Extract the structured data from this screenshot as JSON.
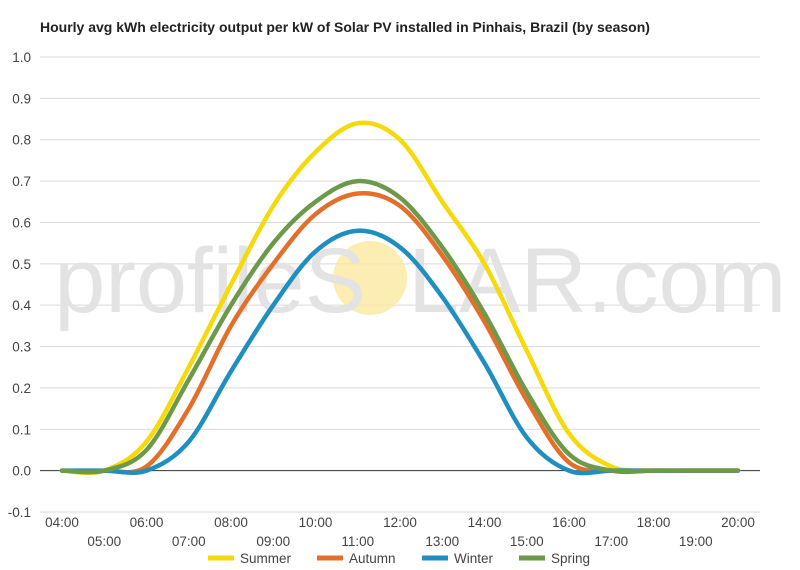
{
  "chart_data": {
    "type": "line",
    "title": "Hourly avg kWh electricity output per kW of Solar PV installed in Pinhais, Brazil (by season)",
    "xlabel": "",
    "ylabel": "",
    "x": [
      "04:00",
      "05:00",
      "06:00",
      "07:00",
      "08:00",
      "09:00",
      "10:00",
      "11:00",
      "12:00",
      "13:00",
      "14:00",
      "15:00",
      "16:00",
      "17:00",
      "18:00",
      "19:00",
      "20:00"
    ],
    "ylim": [
      -0.1,
      1.0
    ],
    "yticks": [
      "-0.1",
      "0.0",
      "0.1",
      "0.2",
      "0.3",
      "0.4",
      "0.5",
      "0.6",
      "0.7",
      "0.8",
      "0.9",
      "1.0"
    ],
    "grid": true,
    "legend_position": "bottom",
    "series": [
      {
        "name": "Summer",
        "color": "#f5d90a",
        "values": [
          0.0,
          0.0,
          0.07,
          0.25,
          0.45,
          0.64,
          0.77,
          0.84,
          0.8,
          0.65,
          0.5,
          0.29,
          0.09,
          0.01,
          0.0,
          0.0,
          0.0
        ]
      },
      {
        "name": "Autumn",
        "color": "#e3702a",
        "values": [
          0.0,
          0.0,
          0.01,
          0.15,
          0.35,
          0.5,
          0.62,
          0.67,
          0.64,
          0.52,
          0.36,
          0.17,
          0.02,
          0.0,
          0.0,
          0.0,
          0.0
        ]
      },
      {
        "name": "Winter",
        "color": "#1f8fc0",
        "values": [
          0.0,
          0.0,
          0.0,
          0.07,
          0.24,
          0.4,
          0.53,
          0.58,
          0.54,
          0.42,
          0.26,
          0.08,
          0.0,
          0.0,
          0.0,
          0.0,
          0.0
        ]
      },
      {
        "name": "Spring",
        "color": "#6c9a4a",
        "values": [
          0.0,
          0.0,
          0.05,
          0.22,
          0.4,
          0.55,
          0.65,
          0.7,
          0.66,
          0.54,
          0.38,
          0.19,
          0.04,
          0.0,
          0.0,
          0.0,
          0.0
        ]
      }
    ]
  },
  "watermark": {
    "before": "profileS",
    "after": "LAR.com",
    "sun_color": "#fbe79a"
  }
}
